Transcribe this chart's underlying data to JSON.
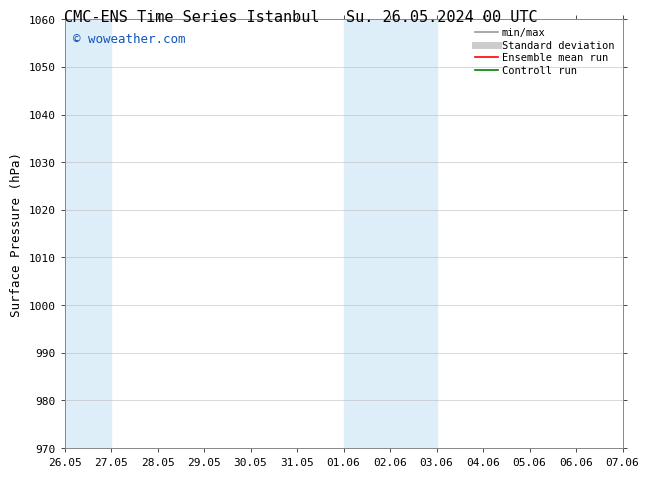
{
  "title_left": "CMC-ENS Time Series Istanbul",
  "title_right": "Su. 26.05.2024 00 UTC",
  "ylabel": "Surface Pressure (hPa)",
  "ylim": [
    970,
    1060
  ],
  "yticks": [
    970,
    980,
    990,
    1000,
    1010,
    1020,
    1030,
    1040,
    1050,
    1060
  ],
  "xtick_labels": [
    "26.05",
    "27.05",
    "28.05",
    "29.05",
    "30.05",
    "31.05",
    "01.06",
    "02.06",
    "03.06",
    "04.06",
    "05.06",
    "06.06",
    "07.06"
  ],
  "shaded_regions": [
    {
      "xstart": 0.0,
      "xend": 1.0,
      "color": "#ddeef8"
    },
    {
      "xstart": 6.0,
      "xend": 7.0,
      "color": "#ddeef8"
    },
    {
      "xstart": 7.0,
      "xend": 8.0,
      "color": "#ddeef8"
    }
  ],
  "watermark_text": "© woweather.com",
  "watermark_color": "#1155bb",
  "watermark_fontsize": 9,
  "bg_color": "#ffffff",
  "grid_color": "#bbbbbb",
  "border_color": "#888888",
  "legend_items": [
    {
      "label": "min/max",
      "color": "#999999",
      "lw": 1.2,
      "style": "solid"
    },
    {
      "label": "Standard deviation",
      "color": "#cccccc",
      "lw": 5,
      "style": "solid"
    },
    {
      "label": "Ensemble mean run",
      "color": "#ff0000",
      "lw": 1.2,
      "style": "solid"
    },
    {
      "label": "Controll run",
      "color": "#008000",
      "lw": 1.2,
      "style": "solid"
    }
  ],
  "title_fontsize": 11,
  "axis_label_fontsize": 9,
  "tick_fontsize": 8,
  "legend_fontsize": 7.5
}
